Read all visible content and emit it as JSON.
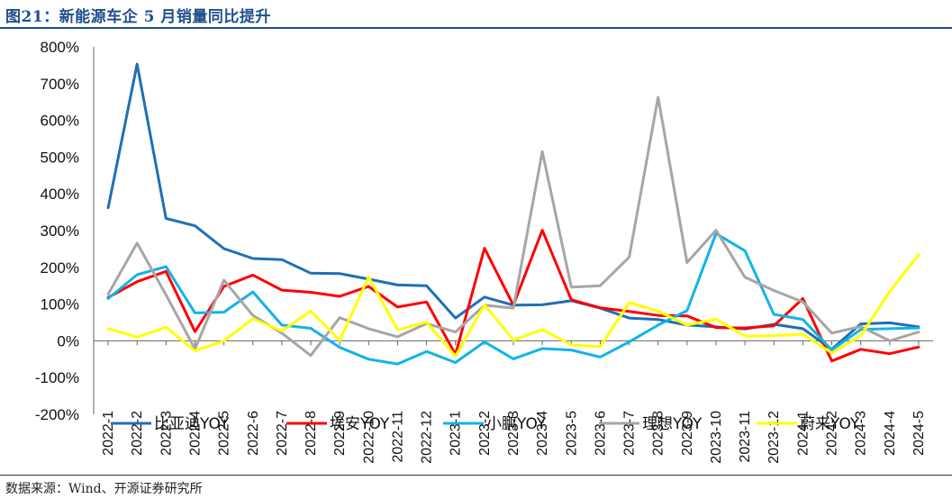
{
  "header": {
    "title": "图21：新能源车企 5 月销量同比提升"
  },
  "footer": {
    "source": "数据来源：Wind、开源证券研究所"
  },
  "chart_data": {
    "type": "line",
    "title": "新能源车企 5 月销量同比提升",
    "xlabel": "",
    "ylabel": "",
    "ylim": [
      -200,
      800
    ],
    "yticks": [
      -200,
      -100,
      0,
      100,
      200,
      300,
      400,
      500,
      600,
      700,
      800
    ],
    "ytick_labels": [
      "-200%",
      "-100%",
      "0%",
      "100%",
      "200%",
      "300%",
      "400%",
      "500%",
      "600%",
      "700%",
      "800%"
    ],
    "categories": [
      "2022-1",
      "2022-2",
      "2022-3",
      "2022-4",
      "2022-5",
      "2022-6",
      "2022-7",
      "2022-8",
      "2022-9",
      "2022-10",
      "2022-11",
      "2022-12",
      "2023-1",
      "2023-2",
      "2023-3",
      "2023-4",
      "2023-5",
      "2023-6",
      "2023-7",
      "2023-8",
      "2023-9",
      "2023-10",
      "2023-11",
      "2023-12",
      "2024-1",
      "2024-2",
      "2024-3",
      "2024-4",
      "2024-5"
    ],
    "legend_position": "bottom",
    "series": [
      {
        "name": "比亚迪YOY",
        "color": "#1f6fb5",
        "values": [
          362,
          753,
          333,
          313,
          251,
          224,
          221,
          184,
          183,
          168,
          152,
          150,
          62,
          119,
          97,
          98,
          109,
          89,
          62,
          58,
          43,
          38,
          32,
          45,
          33,
          -23,
          46,
          49,
          38
        ]
      },
      {
        "name": "埃安YOY",
        "color": "#ff0000",
        "values": [
          118,
          161,
          189,
          25,
          148,
          179,
          138,
          132,
          121,
          148,
          92,
          106,
          -37,
          252,
          97,
          301,
          112,
          90,
          80,
          69,
          68,
          36,
          35,
          41,
          115,
          -55,
          -23,
          -35,
          -17
        ]
      },
      {
        "name": "小鹏YOY",
        "color": "#12b3ea",
        "values": [
          115,
          180,
          202,
          76,
          78,
          133,
          43,
          34,
          -18,
          -50,
          -63,
          -29,
          -59,
          -3,
          -49,
          -21,
          -25,
          -44,
          -3,
          43,
          82,
          292,
          245,
          72,
          58,
          -25,
          31,
          33,
          35
        ]
      },
      {
        "name": "理想YOY",
        "color": "#a6a6a6",
        "values": [
          127,
          266,
          125,
          -22,
          165,
          69,
          21,
          -40,
          63,
          33,
          11,
          47,
          24,
          97,
          89,
          515,
          146,
          150,
          228,
          663,
          213,
          301,
          173,
          137,
          106,
          21,
          39,
          0,
          24
        ]
      },
      {
        "name": "蔚来YOY",
        "color": "#ffff00",
        "values": [
          33,
          10,
          37,
          -27,
          0,
          60,
          27,
          81,
          2,
          174,
          30,
          51,
          -42,
          98,
          2,
          31,
          -11,
          -16,
          104,
          81,
          43,
          59,
          13,
          14,
          18,
          -33,
          14,
          134,
          234
        ]
      }
    ]
  }
}
